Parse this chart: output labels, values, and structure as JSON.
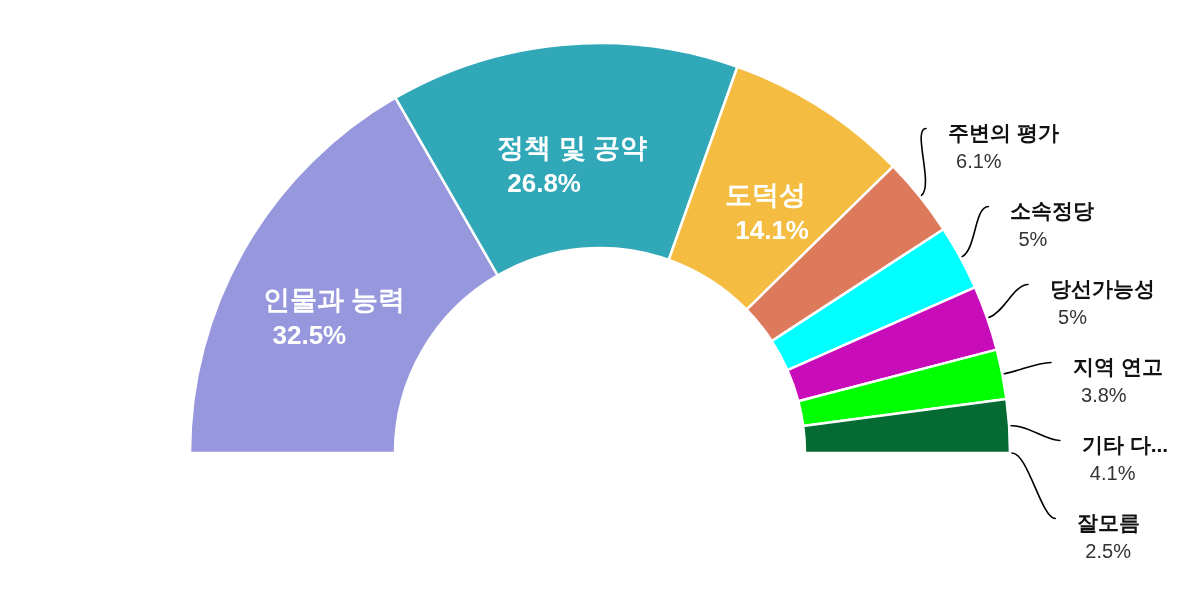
{
  "chart_data": {
    "type": "donut",
    "categories": [
      "인물과 능력",
      "정책 및 공약",
      "도덕성",
      "주변의 평가",
      "소속정당",
      "당선가능성",
      "지역 연고",
      "기타 다..."
    ],
    "values": [
      32.5,
      26.8,
      14.1,
      6.1,
      5,
      5,
      3.8,
      4.1
    ],
    "colors": [
      "#9797dd",
      "#31a8b8",
      "#f4bd42",
      "#dd7a5c",
      "#00ffff",
      "#c90cba",
      "#00ff00",
      "#066a33"
    ],
    "value_labels": [
      "32.5%",
      "26.8%",
      "14.1%",
      "6.1%",
      "5%",
      "5%",
      "3.8%",
      "4.1%"
    ],
    "annotations": [
      "잘모름",
      "2.5%"
    ]
  }
}
